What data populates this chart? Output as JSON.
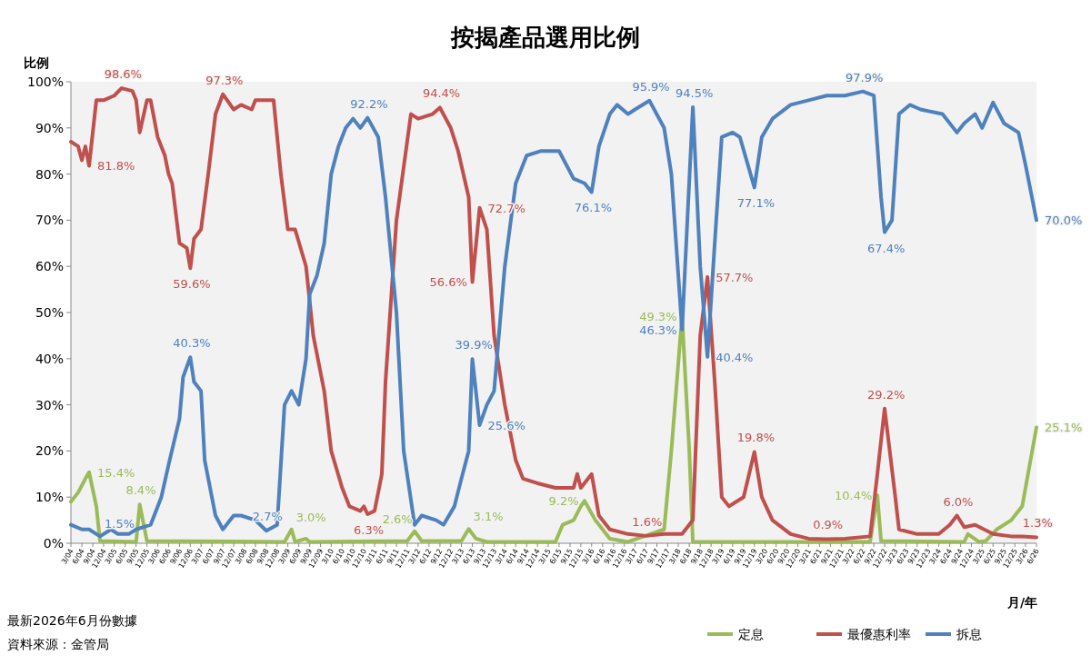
{
  "chart_data": {
    "type": "line",
    "title": "按揭產品選用比例",
    "ylabel": "比例",
    "xlabel": "月/年",
    "xlim": [
      "2004-03",
      "2026-06"
    ],
    "ylim": [
      0,
      100
    ],
    "yticks": [
      {
        "value": 0,
        "label": "0%"
      },
      {
        "value": 10,
        "label": "10%"
      },
      {
        "value": 20,
        "label": "20%"
      },
      {
        "value": 30,
        "label": "30%"
      },
      {
        "value": 40,
        "label": "40%"
      },
      {
        "value": 50,
        "label": "50%"
      },
      {
        "value": 60,
        "label": "60%"
      },
      {
        "value": 70,
        "label": "70%"
      },
      {
        "value": 80,
        "label": "80%"
      },
      {
        "value": 90,
        "label": "90%"
      },
      {
        "value": 100,
        "label": "100%"
      }
    ],
    "xticks": [
      {
        "value": "2004-03",
        "label": "3/04"
      },
      {
        "value": "2004-06",
        "label": "6/04"
      },
      {
        "value": "2004-09",
        "label": "9/04"
      },
      {
        "value": "2004-12",
        "label": "12/04"
      },
      {
        "value": "2005-03",
        "label": "3/05"
      },
      {
        "value": "2005-06",
        "label": "6/05"
      },
      {
        "value": "2005-09",
        "label": "9/05"
      },
      {
        "value": "2005-12",
        "label": "12/05"
      },
      {
        "value": "2006-03",
        "label": "3/06"
      },
      {
        "value": "2006-06",
        "label": "6/06"
      },
      {
        "value": "2006-09",
        "label": "9/06"
      },
      {
        "value": "2006-12",
        "label": "12/06"
      },
      {
        "value": "2007-03",
        "label": "3/07"
      },
      {
        "value": "2007-06",
        "label": "6/07"
      },
      {
        "value": "2007-09",
        "label": "9/07"
      },
      {
        "value": "2007-12",
        "label": "12/07"
      },
      {
        "value": "2008-03",
        "label": "3/08"
      },
      {
        "value": "2008-06",
        "label": "6/08"
      },
      {
        "value": "2008-09",
        "label": "9/08"
      },
      {
        "value": "2008-12",
        "label": "12/08"
      },
      {
        "value": "2009-03",
        "label": "3/09"
      },
      {
        "value": "2009-06",
        "label": "6/09"
      },
      {
        "value": "2009-09",
        "label": "9/09"
      },
      {
        "value": "2009-12",
        "label": "12/09"
      },
      {
        "value": "2010-03",
        "label": "3/10"
      },
      {
        "value": "2010-06",
        "label": "6/10"
      },
      {
        "value": "2010-09",
        "label": "9/10"
      },
      {
        "value": "2010-12",
        "label": "12/10"
      },
      {
        "value": "2011-03",
        "label": "3/11"
      },
      {
        "value": "2011-06",
        "label": "6/11"
      },
      {
        "value": "2011-09",
        "label": "9/11"
      },
      {
        "value": "2011-12",
        "label": "12/11"
      },
      {
        "value": "2012-03",
        "label": "3/12"
      },
      {
        "value": "2012-06",
        "label": "6/12"
      },
      {
        "value": "2012-09",
        "label": "9/12"
      },
      {
        "value": "2012-12",
        "label": "12/12"
      },
      {
        "value": "2013-03",
        "label": "3/13"
      },
      {
        "value": "2013-06",
        "label": "6/13"
      },
      {
        "value": "2013-09",
        "label": "9/13"
      },
      {
        "value": "2013-12",
        "label": "12/13"
      },
      {
        "value": "2014-03",
        "label": "3/14"
      },
      {
        "value": "2014-06",
        "label": "6/14"
      },
      {
        "value": "2014-09",
        "label": "9/14"
      },
      {
        "value": "2014-12",
        "label": "12/14"
      },
      {
        "value": "2015-03",
        "label": "3/15"
      },
      {
        "value": "2015-06",
        "label": "6/15"
      },
      {
        "value": "2015-09",
        "label": "9/15"
      },
      {
        "value": "2015-12",
        "label": "12/15"
      },
      {
        "value": "2016-03",
        "label": "3/16"
      },
      {
        "value": "2016-06",
        "label": "6/16"
      },
      {
        "value": "2016-09",
        "label": "9/16"
      },
      {
        "value": "2016-12",
        "label": "12/16"
      },
      {
        "value": "2017-03",
        "label": "3/17"
      },
      {
        "value": "2017-06",
        "label": "6/17"
      },
      {
        "value": "2017-09",
        "label": "9/17"
      },
      {
        "value": "2017-12",
        "label": "12/17"
      },
      {
        "value": "2018-03",
        "label": "3/18"
      },
      {
        "value": "2018-06",
        "label": "6/18"
      },
      {
        "value": "2018-09",
        "label": "9/18"
      },
      {
        "value": "2018-12",
        "label": "12/18"
      },
      {
        "value": "2019-03",
        "label": "3/19"
      },
      {
        "value": "2019-06",
        "label": "6/19"
      },
      {
        "value": "2019-09",
        "label": "9/19"
      },
      {
        "value": "2019-12",
        "label": "12/19"
      },
      {
        "value": "2020-03",
        "label": "3/20"
      },
      {
        "value": "2020-06",
        "label": "6/20"
      },
      {
        "value": "2020-09",
        "label": "9/20"
      },
      {
        "value": "2020-12",
        "label": "12/20"
      },
      {
        "value": "2021-03",
        "label": "3/21"
      },
      {
        "value": "2021-06",
        "label": "6/21"
      },
      {
        "value": "2021-09",
        "label": "9/21"
      },
      {
        "value": "2021-12",
        "label": "12/21"
      },
      {
        "value": "2022-03",
        "label": "3/22"
      },
      {
        "value": "2022-06",
        "label": "6/22"
      },
      {
        "value": "2022-09",
        "label": "9/22"
      },
      {
        "value": "2022-12",
        "label": "12/22"
      },
      {
        "value": "2023-03",
        "label": "3/23"
      },
      {
        "value": "2023-06",
        "label": "6/23"
      },
      {
        "value": "2023-09",
        "label": "9/23"
      },
      {
        "value": "2023-12",
        "label": "12/23"
      },
      {
        "value": "2024-03",
        "label": "3/24"
      },
      {
        "value": "2024-06",
        "label": "6/24"
      },
      {
        "value": "2024-09",
        "label": "9/24"
      },
      {
        "value": "2024-12",
        "label": "12/24"
      },
      {
        "value": "2025-03",
        "label": "3/25"
      },
      {
        "value": "2025-06",
        "label": "6/25"
      },
      {
        "value": "2025-09",
        "label": "9/25"
      },
      {
        "value": "2025-12",
        "label": "12/25"
      },
      {
        "value": "2026-03",
        "label": "3/26"
      },
      {
        "value": "2026-06",
        "label": "6/26"
      }
    ],
    "legend": "bottom",
    "annotations": [
      "最新2026年6月份數據",
      "資料來源：金管局"
    ],
    "series": [
      {
        "name": "定息",
        "color": "#9bbb59",
        "x": [
          "2004-03",
          "2004-05",
          "2004-07",
          "2004-08",
          "2004-10",
          "2004-11",
          "2005-09",
          "2005-10",
          "2005-12",
          "2009-02",
          "2009-04",
          "2009-05",
          "2009-08",
          "2009-09",
          "2011-12",
          "2012-02",
          "2012-04",
          "2013-03",
          "2013-05",
          "2013-07",
          "2013-10",
          "2015-05",
          "2015-07",
          "2015-10",
          "2015-12",
          "2016-01",
          "2016-04",
          "2016-08",
          "2017-01",
          "2017-11",
          "2018-01",
          "2018-04",
          "2018-06",
          "2018-07",
          "2022-08",
          "2022-10",
          "2022-11",
          "2024-10",
          "2024-11",
          "2025-02",
          "2025-04",
          "2025-07",
          "2025-11",
          "2026-02",
          "2026-06"
        ],
        "values": [
          9,
          11,
          14,
          15.4,
          8,
          0.5,
          0.3,
          8.4,
          0.5,
          0.3,
          3.0,
          0.3,
          1,
          0.3,
          0.5,
          2.6,
          0.5,
          0.5,
          3.1,
          1,
          0.3,
          0.3,
          4,
          5,
          8,
          9.2,
          5,
          1,
          0.3,
          3,
          20,
          49.3,
          20,
          0.3,
          0.3,
          10.4,
          0.5,
          0.3,
          2,
          0.3,
          0.5,
          3,
          5,
          8,
          25.1
        ],
        "value_labels": [
          null,
          null,
          null,
          "15.4%",
          null,
          null,
          null,
          "8.4%",
          null,
          null,
          "3.0%",
          null,
          null,
          null,
          null,
          "2.6%",
          null,
          null,
          "3.1%",
          null,
          null,
          null,
          null,
          null,
          null,
          "9.2%",
          null,
          null,
          null,
          null,
          null,
          "49.3%",
          null,
          null,
          null,
          "10.4%",
          null,
          null,
          null,
          null,
          null,
          null,
          null,
          null,
          "25.1%"
        ]
      },
      {
        "name": "最優惠利率",
        "color": "#c0504d",
        "x": [
          "2004-03",
          "2004-05",
          "2004-06",
          "2004-07",
          "2004-08",
          "2004-10",
          "2004-12",
          "2005-03",
          "2005-05",
          "2005-08",
          "2005-09",
          "2005-10",
          "2005-12",
          "2006-01",
          "2006-03",
          "2006-05",
          "2006-06",
          "2006-07",
          "2006-09",
          "2006-11",
          "2006-12",
          "2007-01",
          "2007-03",
          "2007-05",
          "2007-07",
          "2007-09",
          "2007-12",
          "2008-02",
          "2008-05",
          "2008-06",
          "2008-11",
          "2009-01",
          "2009-03",
          "2009-05",
          "2009-08",
          "2009-10",
          "2010-01",
          "2010-03",
          "2010-06",
          "2010-08",
          "2010-11",
          "2010-12",
          "2011-01",
          "2011-03",
          "2011-05",
          "2011-06",
          "2011-09",
          "2012-01",
          "2012-03",
          "2012-07",
          "2012-09",
          "2012-12",
          "2013-02",
          "2013-05",
          "2013-06",
          "2013-08",
          "2013-10",
          "2013-12",
          "2014-03",
          "2014-06",
          "2014-08",
          "2014-12",
          "2015-05",
          "2015-10",
          "2015-11",
          "2015-12",
          "2016-03",
          "2016-05",
          "2016-08",
          "2017-01",
          "2017-06",
          "2017-11",
          "2018-04",
          "2018-07",
          "2018-09",
          "2018-11",
          "2019-01",
          "2019-03",
          "2019-05",
          "2019-07",
          "2019-09",
          "2019-12",
          "2020-02",
          "2020-05",
          "2020-10",
          "2021-03",
          "2021-08",
          "2022-01",
          "2022-08",
          "2022-10",
          "2022-12",
          "2023-03",
          "2023-04",
          "2023-09",
          "2024-03",
          "2024-06",
          "2024-08",
          "2024-10",
          "2025-01",
          "2025-06",
          "2025-11",
          "2026-02",
          "2026-06"
        ],
        "values": [
          87,
          86,
          83,
          86,
          81.8,
          96,
          96,
          97,
          98.6,
          98,
          96,
          89,
          96,
          96,
          88,
          84,
          80,
          78,
          65,
          64,
          59.6,
          66,
          68,
          80,
          93,
          97.3,
          94,
          95,
          94,
          96,
          96,
          80,
          68,
          68,
          60,
          45,
          33,
          20,
          12,
          8,
          7,
          8,
          6.3,
          7,
          15,
          35,
          70,
          93,
          92,
          93,
          94.4,
          90,
          85,
          75,
          56.6,
          72.7,
          68,
          45,
          30,
          18,
          14,
          13,
          12,
          12,
          15,
          12,
          15,
          6,
          3,
          2,
          1.6,
          2,
          2,
          5,
          45,
          57.7,
          35,
          10,
          8,
          9,
          10,
          19.8,
          10,
          5,
          2,
          1,
          0.9,
          1,
          1.5,
          15,
          29.2,
          10,
          3,
          2,
          2,
          4,
          6.0,
          3.5,
          4,
          2,
          1.5,
          1.5,
          1.3
        ],
        "value_labels": [
          null,
          null,
          null,
          null,
          "81.8%",
          null,
          null,
          null,
          "98.6%",
          null,
          null,
          null,
          null,
          null,
          null,
          null,
          null,
          null,
          null,
          null,
          "59.6%",
          null,
          null,
          null,
          null,
          "97.3%",
          null,
          null,
          null,
          null,
          null,
          null,
          null,
          null,
          null,
          null,
          null,
          null,
          null,
          null,
          null,
          null,
          "6.3%",
          null,
          null,
          null,
          null,
          null,
          null,
          null,
          "94.4%",
          null,
          null,
          null,
          "56.6%",
          "72.7%",
          null,
          null,
          null,
          null,
          null,
          null,
          null,
          null,
          null,
          null,
          null,
          null,
          null,
          null,
          "1.6%",
          null,
          null,
          null,
          null,
          "57.7%",
          null,
          null,
          null,
          null,
          null,
          "19.8%",
          null,
          null,
          null,
          null,
          "0.9%",
          null,
          null,
          null,
          "29.2%",
          null,
          null,
          null,
          null,
          null,
          "6.0%",
          null,
          null,
          null,
          null,
          null,
          "1.3%"
        ]
      },
      {
        "name": "拆息",
        "color": "#4f81bd",
        "x": [
          "2004-03",
          "2004-06",
          "2004-08",
          "2004-11",
          "2005-02",
          "2005-04",
          "2005-07",
          "2005-09",
          "2006-01",
          "2006-04",
          "2006-06",
          "2006-09",
          "2006-10",
          "2006-12",
          "2007-01",
          "2007-03",
          "2007-04",
          "2007-07",
          "2007-09",
          "2007-12",
          "2008-02",
          "2008-06",
          "2008-09",
          "2008-12",
          "2009-02",
          "2009-04",
          "2009-06",
          "2009-08",
          "2009-09",
          "2009-11",
          "2010-01",
          "2010-03",
          "2010-05",
          "2010-07",
          "2010-09",
          "2010-11",
          "2011-01",
          "2011-04",
          "2011-06",
          "2011-09",
          "2011-11",
          "2012-02",
          "2012-04",
          "2012-08",
          "2012-10",
          "2013-01",
          "2013-03",
          "2013-05",
          "2013-06",
          "2013-08",
          "2013-10",
          "2013-12",
          "2014-03",
          "2014-06",
          "2014-09",
          "2015-01",
          "2015-06",
          "2015-10",
          "2016-01",
          "2016-03",
          "2016-05",
          "2016-08",
          "2016-10",
          "2017-01",
          "2017-03",
          "2017-07",
          "2017-11",
          "2018-01",
          "2018-04",
          "2018-07",
          "2018-09",
          "2018-11",
          "2019-01",
          "2019-03",
          "2019-06",
          "2019-08",
          "2019-12",
          "2020-02",
          "2020-05",
          "2020-10",
          "2021-03",
          "2021-08",
          "2022-01",
          "2022-06",
          "2022-09",
          "2022-11",
          "2022-12",
          "2023-02",
          "2023-04",
          "2023-07",
          "2023-10",
          "2024-04",
          "2024-08",
          "2024-10",
          "2025-01",
          "2025-03",
          "2025-06",
          "2025-09",
          "2026-01",
          "2026-03",
          "2026-06"
        ],
        "values": [
          4,
          3,
          3,
          1.5,
          3,
          2,
          2,
          3,
          4,
          10,
          17,
          27,
          36,
          40.3,
          35,
          33,
          18,
          6,
          3,
          6,
          6,
          5,
          2.7,
          4,
          30,
          33,
          30,
          40,
          54,
          58,
          65,
          80,
          86,
          90,
          92,
          90,
          92.2,
          88,
          75,
          50,
          20,
          4,
          6,
          5,
          4,
          8,
          14,
          20,
          39.9,
          25.6,
          30,
          33,
          60,
          78,
          84,
          85,
          85,
          79,
          78,
          76.1,
          86,
          93,
          95,
          93,
          94,
          95.9,
          90,
          80,
          46.3,
          94.5,
          60,
          40.4,
          65,
          88,
          89,
          88,
          77.1,
          88,
          92,
          95,
          96,
          97,
          97,
          97.9,
          97,
          75,
          67.4,
          70,
          93,
          95,
          94,
          93,
          89,
          91,
          93,
          90,
          95.5,
          91,
          89,
          82,
          70.0
        ],
        "value_labels": [
          null,
          null,
          null,
          "1.5%",
          null,
          null,
          null,
          null,
          null,
          null,
          null,
          null,
          null,
          "40.3%",
          null,
          null,
          null,
          null,
          null,
          null,
          null,
          null,
          "2.7%",
          null,
          null,
          null,
          null,
          null,
          null,
          null,
          null,
          null,
          null,
          null,
          null,
          null,
          "92.2%",
          null,
          null,
          null,
          null,
          null,
          null,
          null,
          null,
          null,
          null,
          null,
          "39.9%",
          "25.6%",
          null,
          null,
          null,
          null,
          null,
          null,
          null,
          null,
          null,
          "76.1%",
          null,
          null,
          null,
          null,
          null,
          "95.9%",
          null,
          null,
          "46.3%",
          "94.5%",
          null,
          "40.4%",
          null,
          null,
          null,
          null,
          "77.1%",
          null,
          null,
          null,
          null,
          null,
          null,
          "97.9%",
          null,
          null,
          "67.4%",
          null,
          null,
          null,
          null,
          null,
          null,
          null,
          null,
          null,
          null,
          null,
          null,
          null,
          "70.0%"
        ]
      }
    ]
  }
}
